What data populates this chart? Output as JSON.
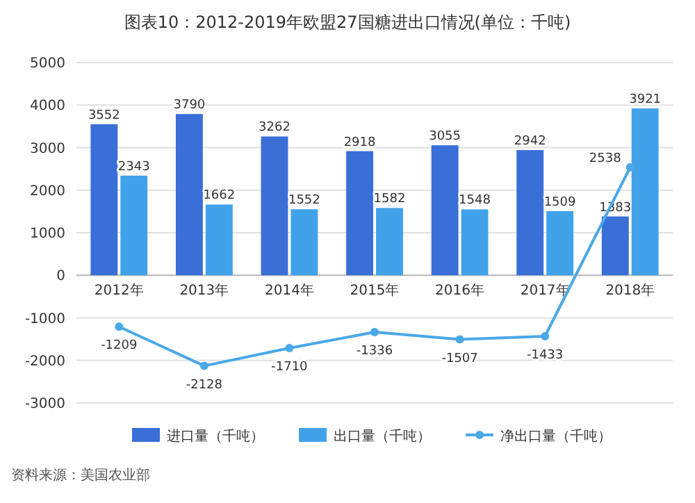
{
  "chart_data": {
    "type": "bar",
    "title": "图表10：2012-2019年欧盟27国糖进出口情况(单位：千吨)",
    "categories": [
      "2012年",
      "2013年",
      "2014年",
      "2015年",
      "2016年",
      "2017年",
      "2018年"
    ],
    "series": [
      {
        "name": "进口量（千吨）",
        "color": "#3a6fd8",
        "values": [
          3552,
          3790,
          3262,
          2918,
          3055,
          2942,
          1383
        ]
      },
      {
        "name": "出口量（千吨）",
        "color": "#41a2ea",
        "values": [
          2343,
          1662,
          1552,
          1582,
          1548,
          1509,
          3921
        ]
      },
      {
        "name": "净出口量（千吨）",
        "color": "#4aa8e8",
        "type": "line",
        "values": [
          -1209,
          -2128,
          -1710,
          -1336,
          -1507,
          -1433,
          2538
        ]
      }
    ],
    "ylim": [
      -3000,
      5000
    ],
    "yticks": [
      -3000,
      -2000,
      -1000,
      0,
      1000,
      2000,
      3000,
      4000,
      5000
    ],
    "grid": "y",
    "legend": "bottom",
    "marker": "circle",
    "data_labels": true,
    "annotations": [
      "资料来源：美国农业部"
    ]
  }
}
